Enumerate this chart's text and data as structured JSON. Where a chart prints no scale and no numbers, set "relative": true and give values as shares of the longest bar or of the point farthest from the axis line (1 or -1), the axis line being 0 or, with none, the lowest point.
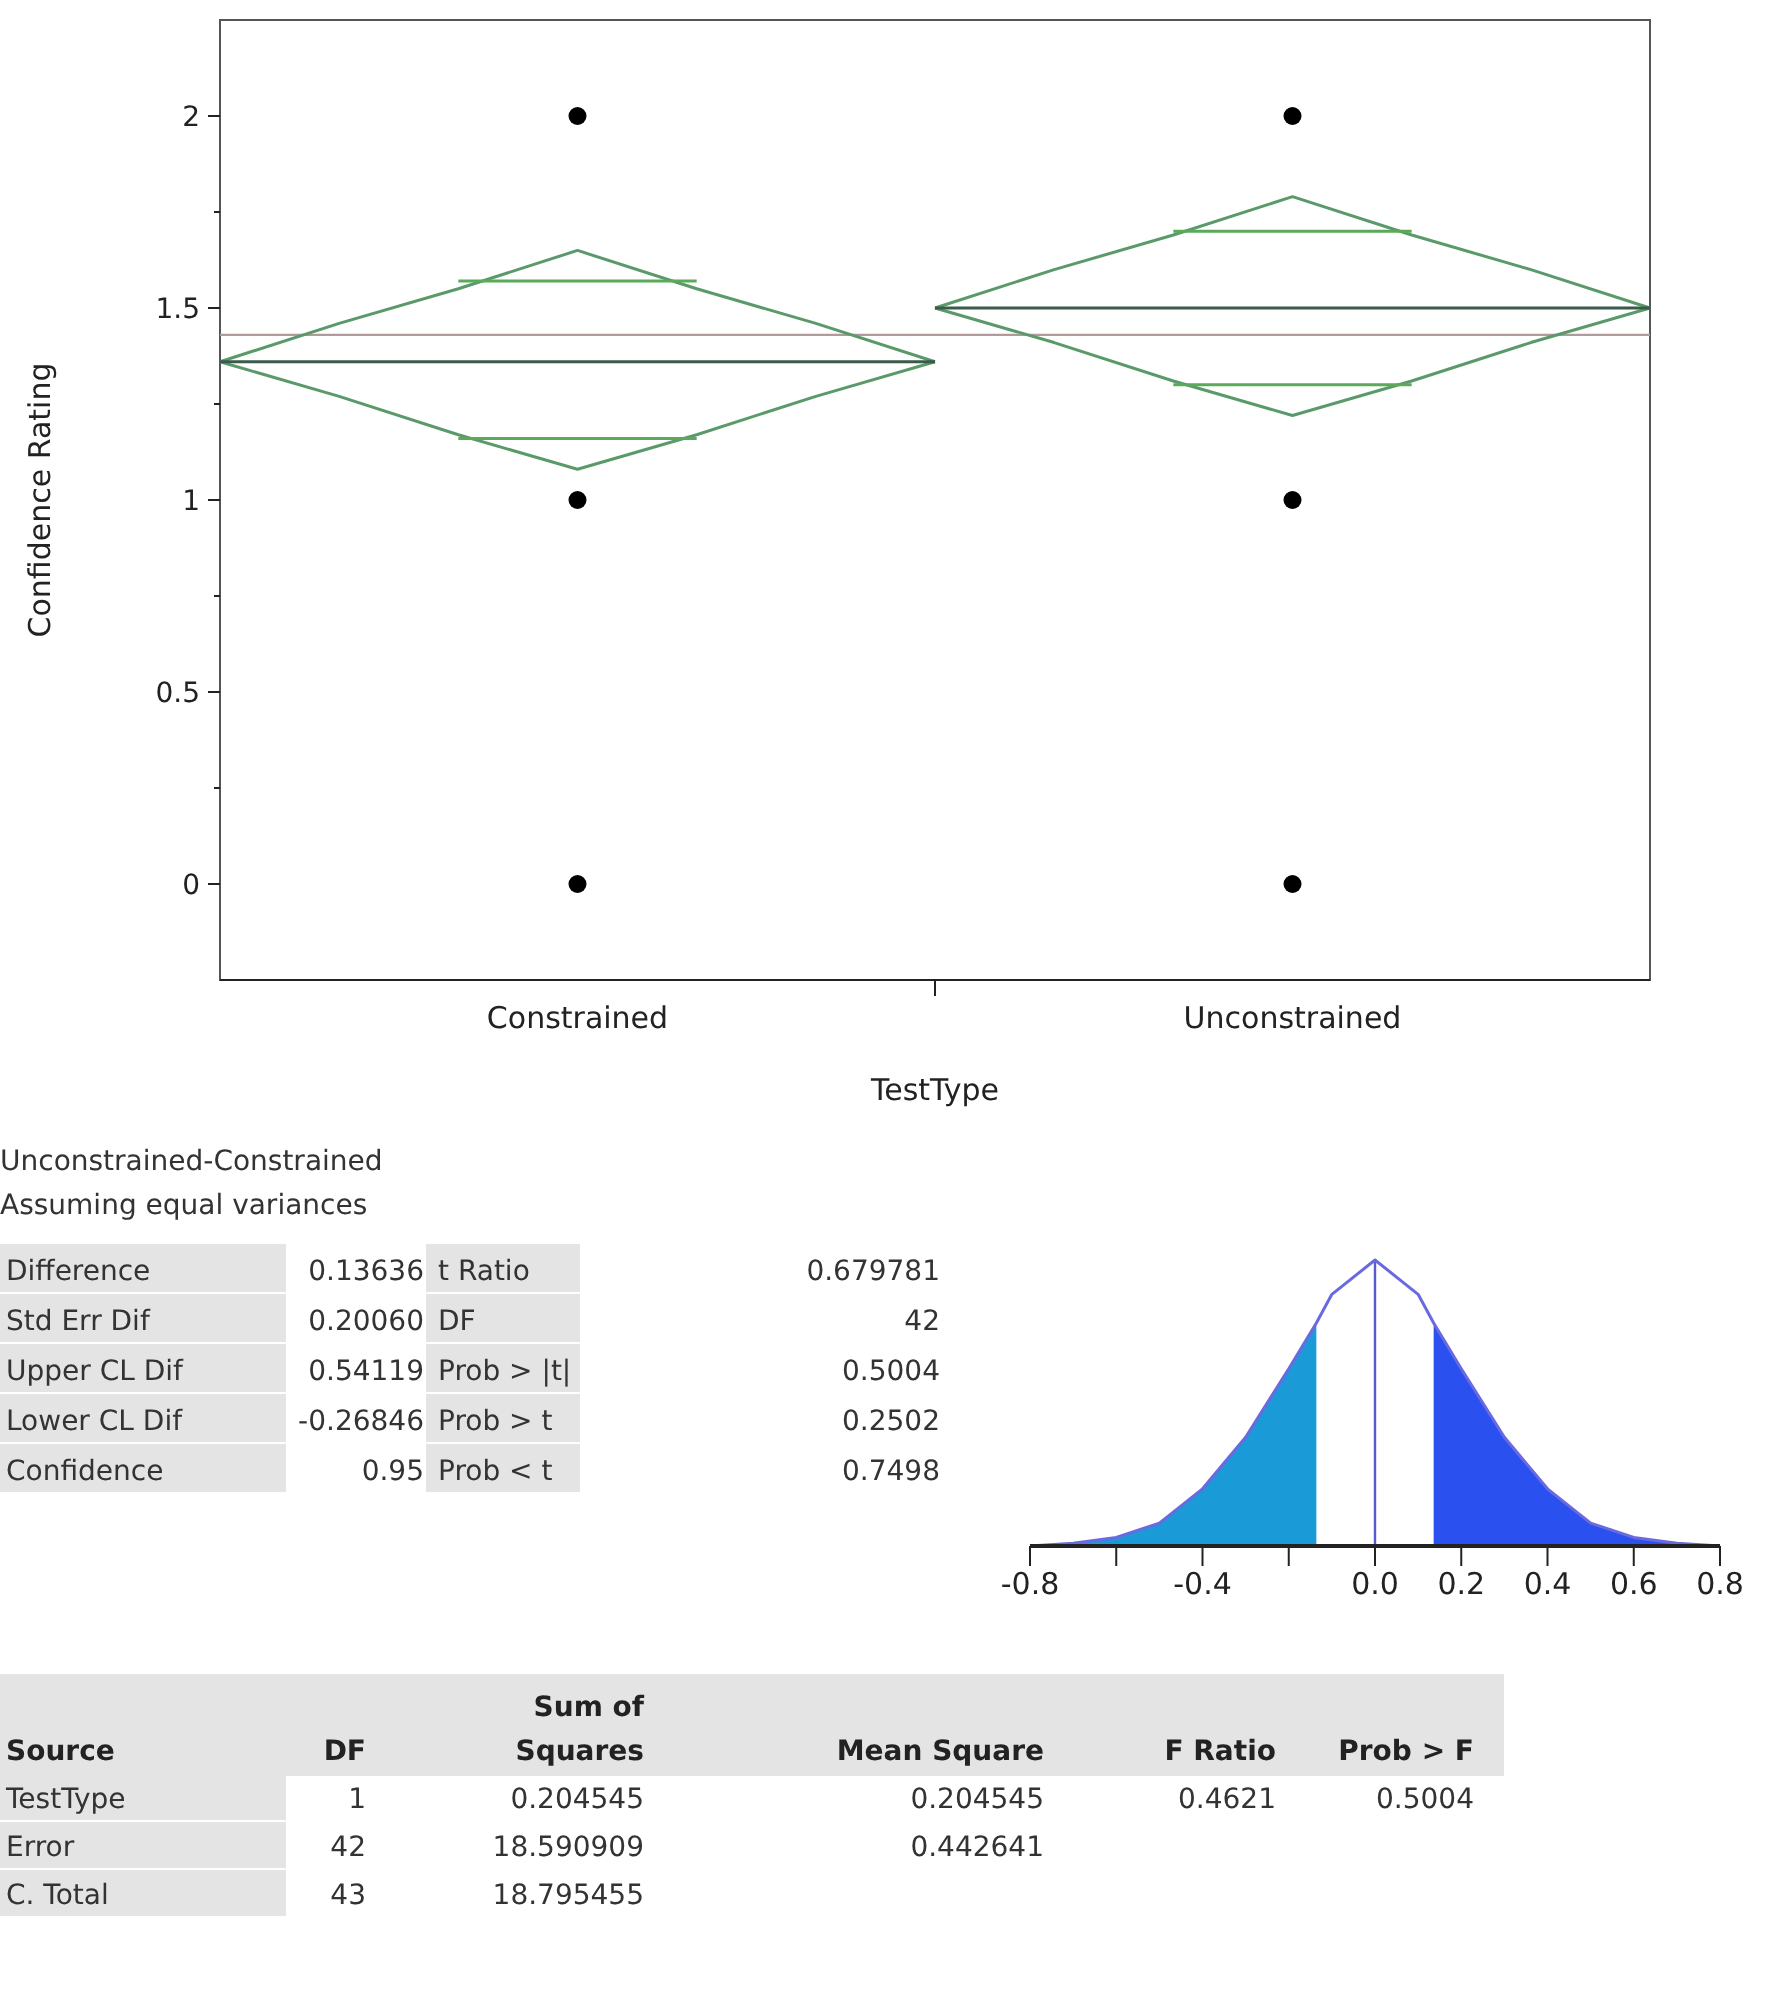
{
  "chart_data": [
    {
      "type": "line",
      "xlabel": "TestType",
      "ylabel": "Confidence Rating",
      "marker": "none",
      "categories": [
        null,
        null,
        null,
        "Constrained",
        null,
        null,
        null,
        null,
        null,
        "Unconstrained",
        null,
        null,
        null
      ],
      "ylim": [
        -0.25,
        2.25
      ],
      "yticks": [
        0,
        {
          "value": 0.25,
          "label": null
        },
        0.5,
        {
          "value": 0.75,
          "label": null
        },
        1,
        {
          "value": 1.25,
          "label": null
        },
        1.5,
        {
          "value": 1.75,
          "label": null
        },
        2
      ],
      "ref_lines": [
        {
          "axis": "y",
          "value": 1.43,
          "color": "#b09a9a"
        }
      ],
      "series": [
        {
          "color": "#5a9a6a",
          "values": [
            1.36,
            1.46,
            1.55,
            1.65,
            1.55,
            1.46,
            1.36,
            null,
            null,
            null,
            null,
            null,
            null
          ]
        },
        {
          "color": "#5a9a6a",
          "values": [
            1.36,
            1.27,
            1.17,
            1.08,
            1.17,
            1.27,
            1.36,
            null,
            null,
            null,
            null,
            null,
            null
          ]
        },
        {
          "color": "#3a5a4a",
          "values": [
            1.36,
            1.36,
            1.36,
            1.36,
            1.36,
            1.36,
            1.36,
            null,
            null,
            null,
            null,
            null,
            null
          ]
        },
        {
          "color": "#5aaa5a",
          "values": [
            null,
            null,
            1.57,
            1.57,
            1.57,
            null,
            null,
            null,
            null,
            null,
            null,
            null,
            null
          ]
        },
        {
          "color": "#5aaa5a",
          "values": [
            null,
            null,
            1.16,
            1.16,
            1.16,
            null,
            null,
            null,
            null,
            null,
            null,
            null,
            null
          ]
        },
        {
          "color": "#5a9a6a",
          "values": [
            null,
            null,
            null,
            null,
            null,
            null,
            1.5,
            1.6,
            1.69,
            1.79,
            1.69,
            1.6,
            1.5
          ]
        },
        {
          "color": "#5a9a6a",
          "values": [
            null,
            null,
            null,
            null,
            null,
            null,
            1.5,
            1.41,
            1.31,
            1.22,
            1.31,
            1.41,
            1.5
          ]
        },
        {
          "color": "#3a5a4a",
          "values": [
            null,
            null,
            null,
            null,
            null,
            null,
            1.5,
            1.5,
            1.5,
            1.5,
            1.5,
            1.5,
            1.5
          ]
        },
        {
          "color": "#5aaa5a",
          "values": [
            null,
            null,
            null,
            null,
            null,
            null,
            null,
            null,
            1.7,
            1.7,
            1.7,
            null,
            null
          ]
        },
        {
          "color": "#5aaa5a",
          "values": [
            null,
            null,
            null,
            null,
            null,
            null,
            null,
            null,
            1.3,
            1.3,
            1.3,
            null,
            null
          ]
        },
        {
          "type": "scatter",
          "marker": "circle",
          "color": "#000000",
          "x": [
            "Constrained",
            "Constrained",
            "Constrained",
            "Unconstrained",
            "Unconstrained",
            "Unconstrained"
          ],
          "values": [
            2,
            1,
            0,
            2,
            1,
            0
          ]
        }
      ]
    },
    {
      "type": "other",
      "annotations": [
        "Unconstrained-Constrained",
        "Assuming equal variances",
        "Difference",
        "0.13636",
        "t Ratio",
        "0.679781",
        "Std Err Dif",
        "0.20060",
        "DF",
        "42",
        "Upper CL Dif",
        "0.54119",
        "Prob > |t|",
        "0.5004",
        "Lower CL Dif",
        "-0.26846",
        "Prob > t",
        "0.2502",
        "Confidence",
        "0.95",
        "Prob < t",
        "0.7498"
      ]
    },
    {
      "type": "area",
      "relative": true,
      "marker": "none",
      "xlim": [
        -0.8,
        0.8
      ],
      "xticks": [
        {
          "value": -0.8,
          "label": "-0.8"
        },
        {
          "value": -0.6,
          "label": null
        },
        {
          "value": -0.4,
          "label": "-0.4"
        },
        {
          "value": -0.2,
          "label": null
        },
        {
          "value": 0,
          "label": "0.0"
        },
        {
          "value": 0.2,
          "label": "0.2"
        },
        {
          "value": 0.4,
          "label": "0.4"
        },
        {
          "value": 0.6,
          "label": "0.6"
        },
        {
          "value": 0.8,
          "label": "0.8"
        }
      ],
      "ref_lines": [
        {
          "axis": "x",
          "value": 0,
          "color": "#5a5ad0"
        }
      ],
      "series": [
        {
          "type": "area",
          "color": "#1a9ad6",
          "x": [
            -0.8,
            -0.7,
            -0.6,
            -0.5,
            -0.4,
            -0.3,
            -0.2,
            -0.136
          ],
          "values": [
            0,
            0.01,
            0.03,
            0.08,
            0.2,
            0.38,
            0.62,
            0.78
          ]
        },
        {
          "type": "area",
          "color": "#2b50f0",
          "x": [
            0.136,
            0.2,
            0.3,
            0.4,
            0.5,
            0.6,
            0.7,
            0.8
          ],
          "values": [
            0.78,
            0.62,
            0.38,
            0.2,
            0.08,
            0.03,
            0.01,
            0
          ]
        },
        {
          "type": "line",
          "color": "#6a6ae0",
          "x": [
            -0.8,
            -0.7,
            -0.6,
            -0.5,
            -0.4,
            -0.3,
            -0.2,
            -0.136,
            -0.1,
            0,
            0.1,
            0.136,
            0.2,
            0.3,
            0.4,
            0.5,
            0.6,
            0.7,
            0.8
          ],
          "values": [
            0,
            0.01,
            0.03,
            0.08,
            0.2,
            0.38,
            0.62,
            0.78,
            0.88,
            1,
            0.88,
            0.78,
            0.62,
            0.38,
            0.2,
            0.08,
            0.03,
            0.01,
            0
          ]
        }
      ]
    },
    {
      "type": "other",
      "annotations": [
        "Source",
        "DF",
        "Sum of Squares",
        "Mean Square",
        "F Ratio",
        "Prob > F",
        "TestType",
        "1",
        "0.204545",
        "0.204545",
        "0.4621",
        "0.5004",
        "Error",
        "42",
        "18.590909",
        "0.442641",
        null,
        null,
        "C. Total",
        "43",
        "18.795455",
        null,
        null,
        null
      ]
    }
  ]
}
